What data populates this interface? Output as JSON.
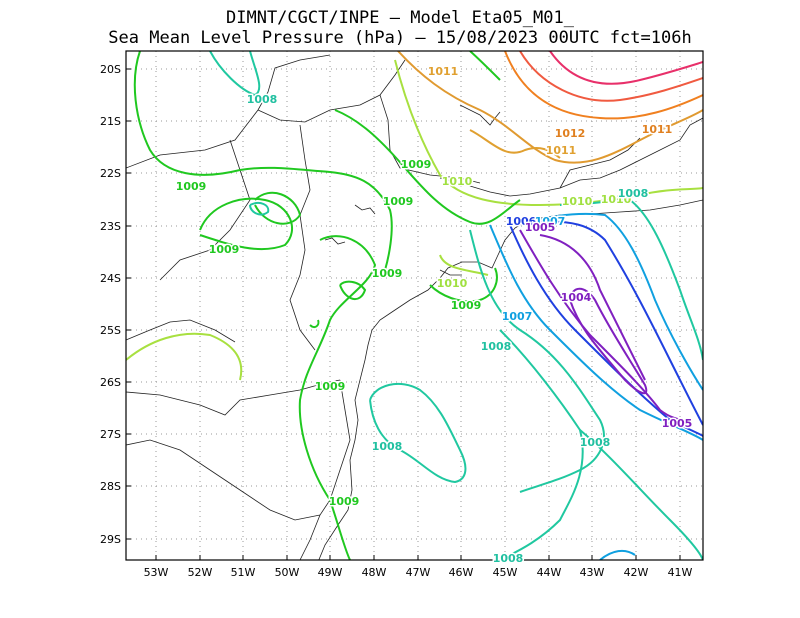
{
  "header": {
    "title_line1": "DIMNT/CGCT/INPE –  Model Eta05_M01_",
    "title_line2": "Sea Mean Level Pressure (hPa) – 15/08/2023 00UTC fct=106h"
  },
  "map": {
    "lon_ticks": [
      "53W",
      "52W",
      "51W",
      "50W",
      "49W",
      "48W",
      "47W",
      "46W",
      "45W",
      "44W",
      "43W",
      "42W",
      "41W"
    ],
    "lat_ticks": [
      "20S",
      "21S",
      "22S",
      "23S",
      "24S",
      "25S",
      "26S",
      "27S",
      "28S",
      "29S"
    ],
    "contour_labels": [
      {
        "text": "1011",
        "color": "#e0a030"
      },
      {
        "text": "1008",
        "color": "#20c0a0"
      },
      {
        "text": "1012",
        "color": "#e08020"
      },
      {
        "text": "1011",
        "color": "#e08020"
      },
      {
        "text": "1011",
        "color": "#e0a030"
      },
      {
        "text": "1009",
        "color": "#20c820"
      },
      {
        "text": "1009",
        "color": "#20c820"
      },
      {
        "text": "1010",
        "color": "#a0e040"
      },
      {
        "text": "1009",
        "color": "#20c820"
      },
      {
        "text": "1010",
        "color": "#a0e040"
      },
      {
        "text": "1010",
        "color": "#a0e040"
      },
      {
        "text": "1008",
        "color": "#20c0a0"
      },
      {
        "text": "1009",
        "color": "#20c820"
      },
      {
        "text": "1006",
        "color": "#2040e0"
      },
      {
        "text": "1007",
        "color": "#10a0e0"
      },
      {
        "text": "1005",
        "color": "#8020c0"
      },
      {
        "text": "1009",
        "color": "#20c820"
      },
      {
        "text": "1010",
        "color": "#a0e040"
      },
      {
        "text": "1009",
        "color": "#20c820"
      },
      {
        "text": "1004",
        "color": "#8020c0"
      },
      {
        "text": "1007",
        "color": "#10a0e0"
      },
      {
        "text": "1008",
        "color": "#20c0a0"
      },
      {
        "text": "1009",
        "color": "#20c820"
      },
      {
        "text": "1005",
        "color": "#8020c0"
      },
      {
        "text": "1008",
        "color": "#20c0a0"
      },
      {
        "text": "1008",
        "color": "#20c0a0"
      },
      {
        "text": "1009",
        "color": "#20c820"
      },
      {
        "text": "1008",
        "color": "#20c0a0"
      }
    ]
  }
}
